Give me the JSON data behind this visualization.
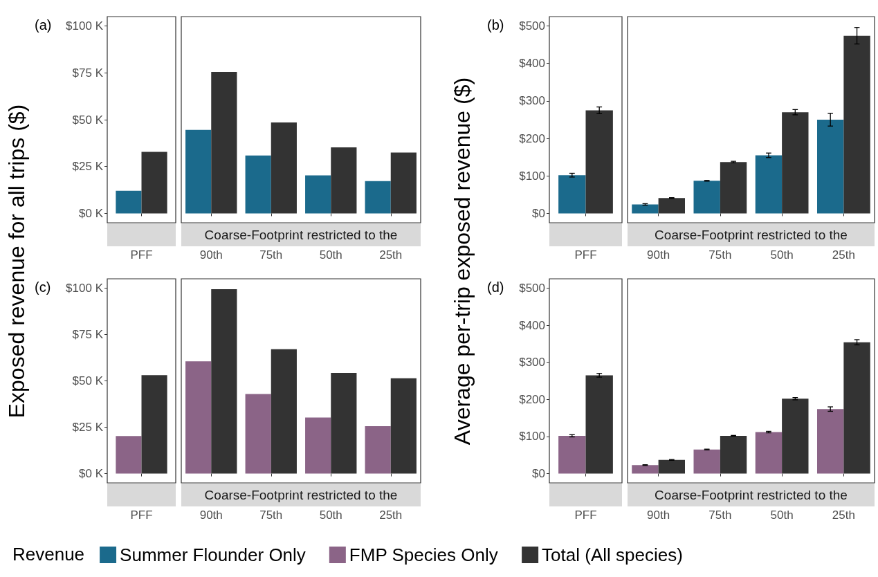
{
  "chart_data": [
    {
      "type": "bar",
      "ylabel": "Exposed revenue for all trips ($)",
      "legend_title": "Revenue",
      "legend": "bottom",
      "annotations": [
        "(a)",
        "Coarse-Footprint restricted to the"
      ],
      "categories": [
        "PFF",
        "90th",
        "75th",
        "50th",
        "25th"
      ],
      "ylim": [
        -5,
        105
      ],
      "yticks": [
        {
          "value": 0,
          "label": "$0 K"
        },
        {
          "value": 25,
          "label": "$25 K"
        },
        {
          "value": 50,
          "label": "$50 K"
        },
        {
          "value": 75,
          "label": "$75 K"
        },
        {
          "value": 100,
          "label": "$100 K"
        }
      ],
      "series": [
        {
          "name": "Summer Flounder Only",
          "color": "#1b6a8c",
          "values": [
            12.1,
            44.6,
            30.9,
            20.3,
            17.2
          ]
        },
        {
          "name": "Total (All species)",
          "color": "#333333",
          "values": [
            32.8,
            75.5,
            48.5,
            35.2,
            32.5
          ]
        }
      ]
    },
    {
      "type": "bar",
      "ylabel": "Average per-trip exposed revenue ($)",
      "legend": "bottom",
      "annotations": [
        "(b)",
        "Coarse-Footprint restricted to the"
      ],
      "categories": [
        "PFF",
        "90th",
        "75th",
        "50th",
        "25th"
      ],
      "ylim": [
        -25,
        525
      ],
      "yticks": [
        {
          "value": 0,
          "label": "$0"
        },
        {
          "value": 100,
          "label": "$100"
        },
        {
          "value": 200,
          "label": "$200"
        },
        {
          "value": 300,
          "label": "$300"
        },
        {
          "value": 400,
          "label": "$400"
        },
        {
          "value": 500,
          "label": "$500"
        }
      ],
      "series": [
        {
          "name": "Summer Flounder Only",
          "color": "#1b6a8c",
          "values": [
            102,
            24,
            87,
            155,
            250
          ],
          "errors": [
            5,
            2,
            1,
            6,
            17
          ]
        },
        {
          "name": "Total (All species)",
          "color": "#333333",
          "values": [
            275,
            41,
            137,
            270,
            474
          ],
          "errors": [
            9,
            1,
            2,
            7,
            22
          ]
        }
      ]
    },
    {
      "type": "bar",
      "legend": "bottom",
      "annotations": [
        "(c)",
        "Coarse-Footprint restricted to the"
      ],
      "categories": [
        "PFF",
        "90th",
        "75th",
        "50th",
        "25th"
      ],
      "ylim": [
        -5,
        105
      ],
      "yticks": [
        {
          "value": 0,
          "label": "$0 K"
        },
        {
          "value": 25,
          "label": "$25 K"
        },
        {
          "value": 50,
          "label": "$50 K"
        },
        {
          "value": 75,
          "label": "$75 K"
        },
        {
          "value": 100,
          "label": "$100 K"
        }
      ],
      "series": [
        {
          "name": "FMP Species Only",
          "color": "#8b6487",
          "values": [
            20.3,
            60.5,
            42.9,
            30.2,
            25.6
          ]
        },
        {
          "name": "Total (All species)",
          "color": "#333333",
          "values": [
            53.1,
            99.4,
            67.1,
            54.3,
            51.4
          ]
        }
      ]
    },
    {
      "type": "bar",
      "legend": "bottom",
      "annotations": [
        "(d)",
        "Coarse-Footprint restricted to the"
      ],
      "categories": [
        "PFF",
        "90th",
        "75th",
        "50th",
        "25th"
      ],
      "ylim": [
        -25,
        525
      ],
      "yticks": [
        {
          "value": 0,
          "label": "$0"
        },
        {
          "value": 100,
          "label": "$100"
        },
        {
          "value": 200,
          "label": "$200"
        },
        {
          "value": 300,
          "label": "$300"
        },
        {
          "value": 400,
          "label": "$400"
        },
        {
          "value": 500,
          "label": "$500"
        }
      ],
      "series": [
        {
          "name": "FMP Species Only",
          "color": "#8b6487",
          "values": [
            102,
            23,
            65,
            112,
            174
          ],
          "errors": [
            3,
            1,
            1,
            2,
            6
          ]
        },
        {
          "name": "Total (All species)",
          "color": "#333333",
          "values": [
            265,
            37,
            102,
            202,
            354
          ],
          "errors": [
            5,
            1,
            1,
            3,
            7
          ]
        }
      ]
    }
  ]
}
